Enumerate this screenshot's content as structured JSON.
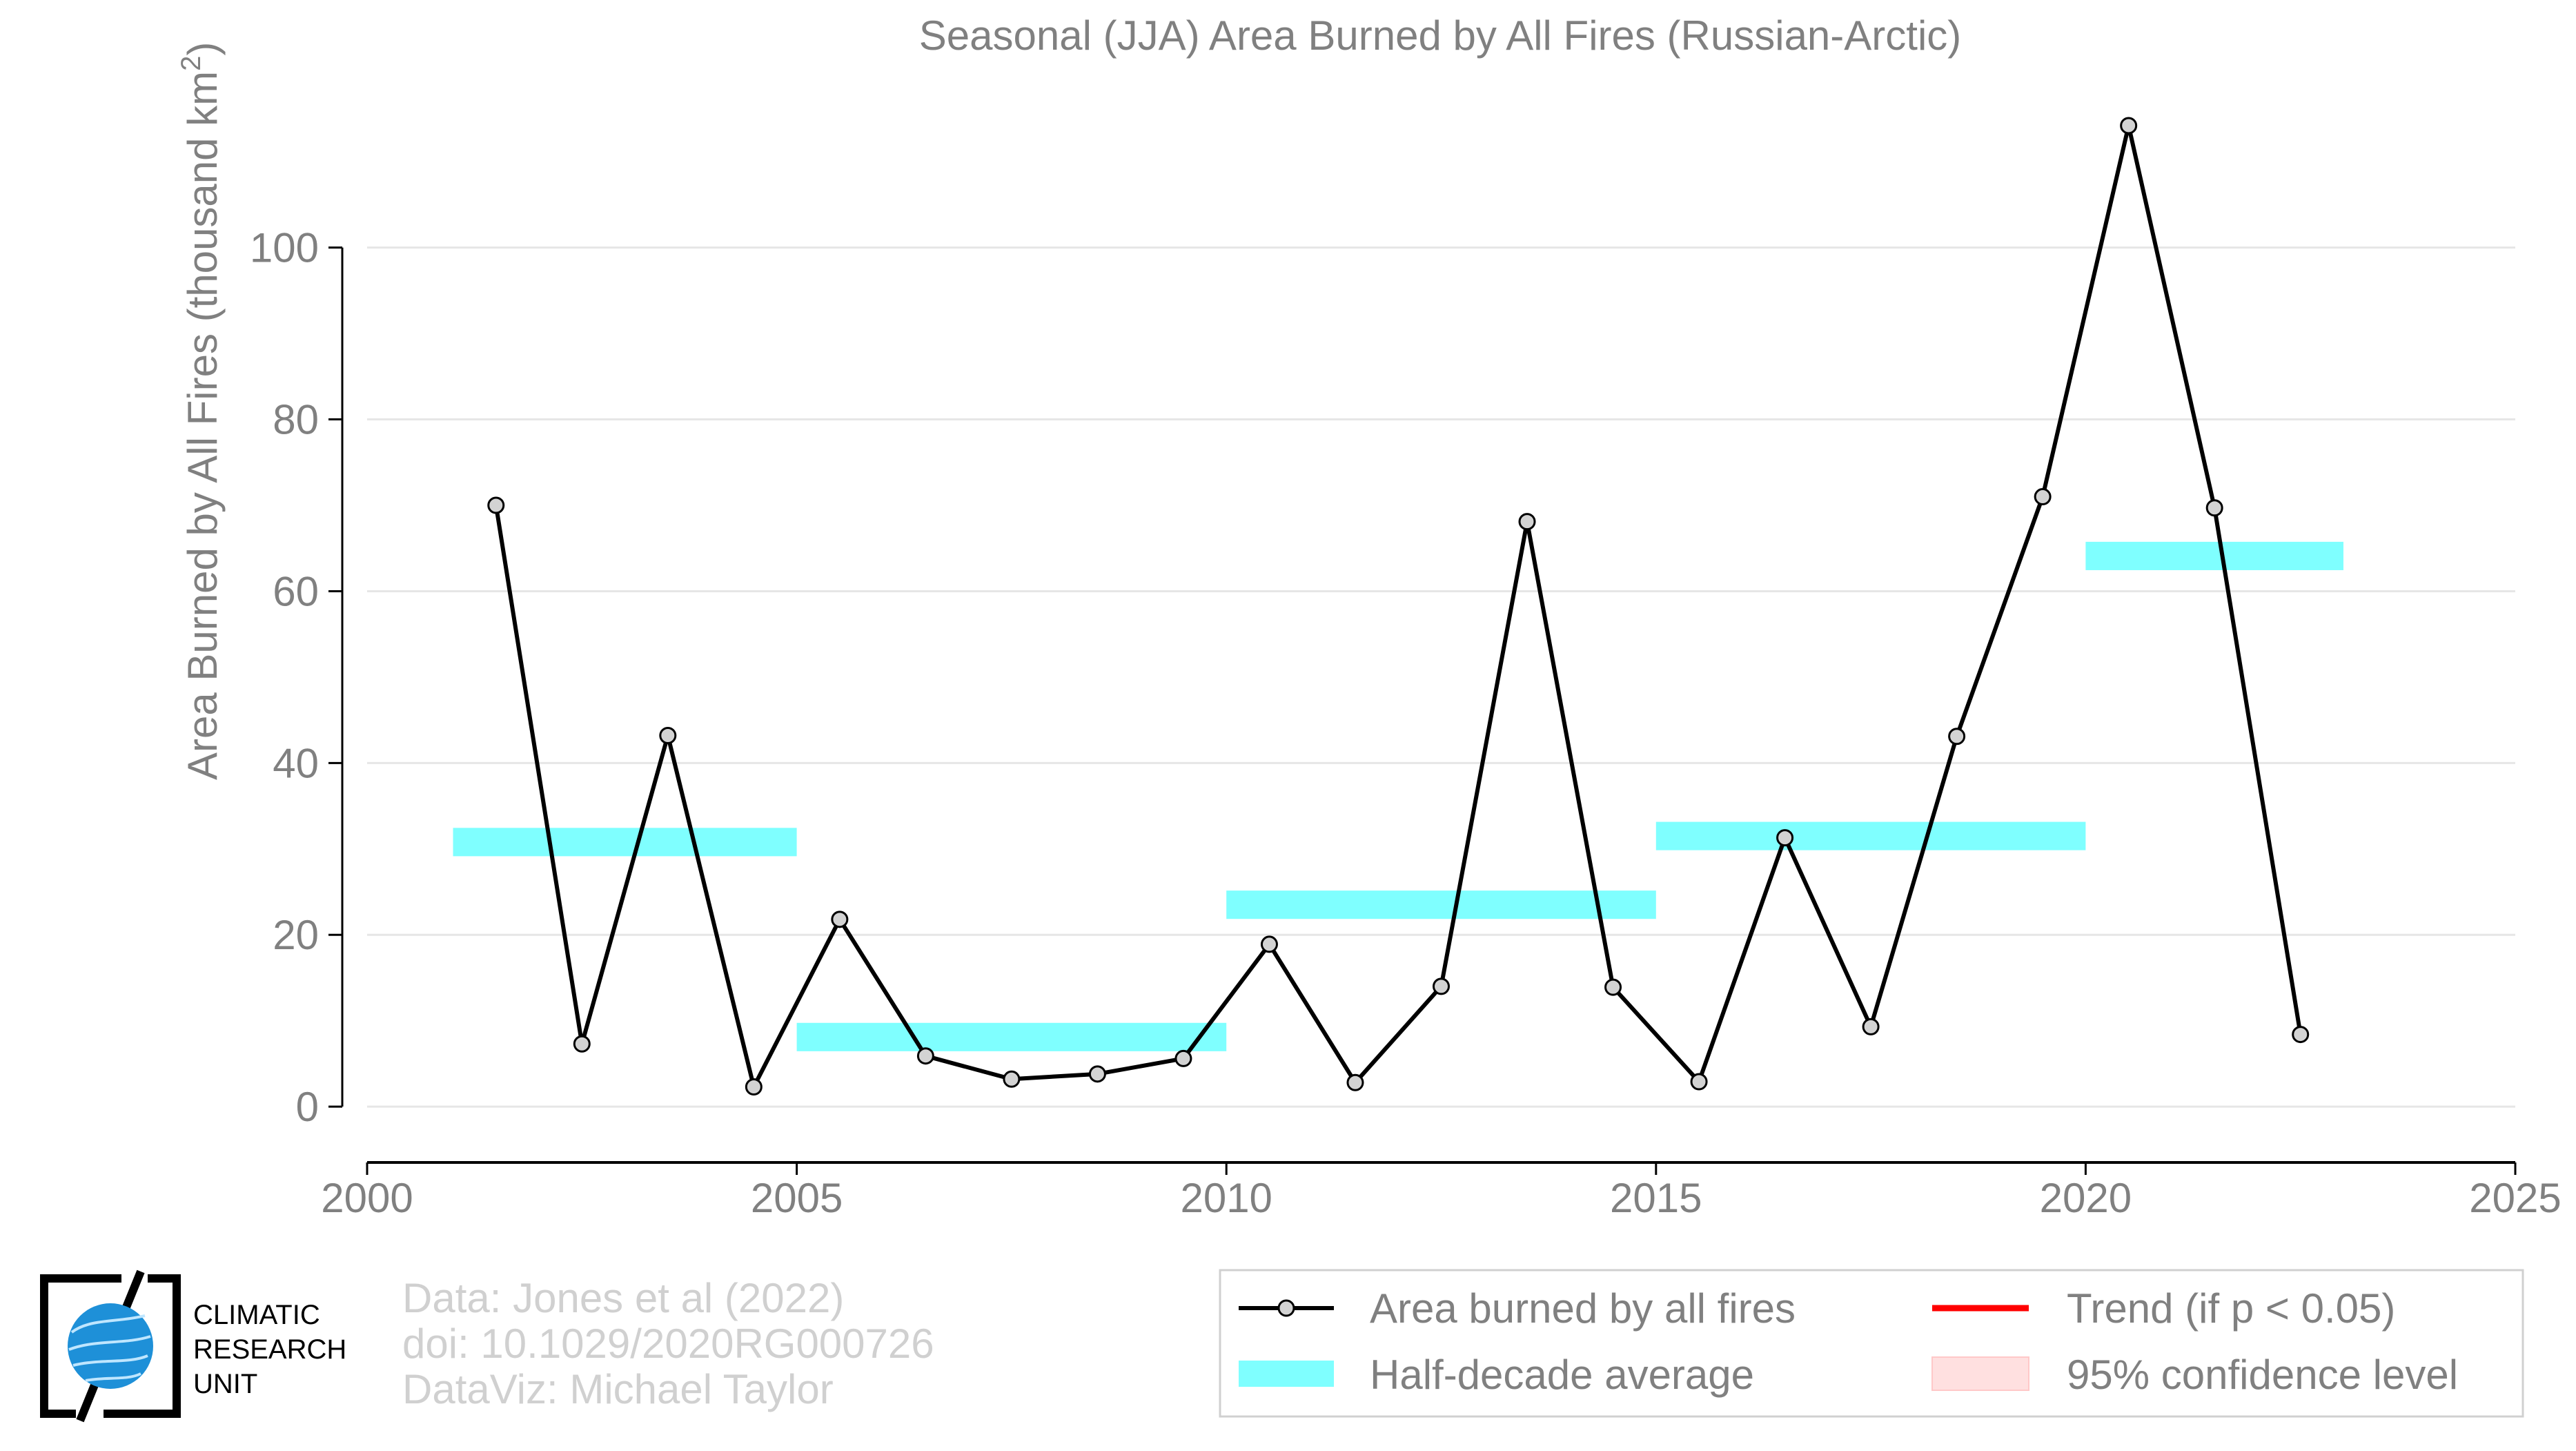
{
  "chart_data": {
    "type": "line",
    "title": "Seasonal (JJA) Area Burned by All Fires (Russian-Arctic)",
    "xlabel": "",
    "ylabel": "Area Burned by All Fires (thousand km",
    "ylabel_sup": "2",
    "ylabel_end": ")",
    "xlim": [
      2000,
      2025
    ],
    "ylim": [
      -6.5,
      115
    ],
    "x_ticks": [
      2000,
      2005,
      2010,
      2015,
      2020,
      2025
    ],
    "y_ticks": [
      0,
      20,
      40,
      60,
      80,
      100
    ],
    "grid": "horizontal",
    "series": [
      {
        "name": "Area burned by all fires",
        "color": "#000000",
        "marker_fill": "#d3d3d3",
        "x": [
          2001.5,
          2002.5,
          2003.5,
          2004.5,
          2005.5,
          2006.5,
          2007.5,
          2008.5,
          2009.5,
          2010.5,
          2011.5,
          2012.5,
          2013.5,
          2014.5,
          2015.5,
          2016.5,
          2017.5,
          2018.5,
          2019.5,
          2020.5,
          2021.5,
          2022.5
        ],
        "values": [
          70.0,
          7.3,
          43.2,
          2.3,
          21.8,
          5.9,
          3.2,
          3.8,
          5.6,
          18.9,
          2.8,
          14.0,
          68.1,
          13.9,
          2.9,
          31.3,
          9.3,
          43.1,
          71.0,
          114.2,
          69.7,
          8.4
        ]
      }
    ],
    "half_decade_average": {
      "name": "Half-decade average",
      "color": "#7fffff",
      "segments": [
        {
          "x_start": 2001,
          "x_end": 2005,
          "value": 30.8
        },
        {
          "x_start": 2005,
          "x_end": 2010,
          "value": 8.1
        },
        {
          "x_start": 2010,
          "x_end": 2015,
          "value": 23.5
        },
        {
          "x_start": 2015,
          "x_end": 2020,
          "value": 31.5
        },
        {
          "x_start": 2020,
          "x_end": 2023,
          "value": 64.1
        }
      ]
    },
    "legend": {
      "placement": "bottom-right",
      "entries": [
        {
          "label": "Area burned by all fires",
          "kind": "line-marker",
          "color": "#000000"
        },
        {
          "label": "Trend (if p < 0.05)",
          "kind": "line",
          "color": "#ff0000"
        },
        {
          "label": "Half-decade average",
          "kind": "band",
          "color": "#7fffff"
        },
        {
          "label": "95% confidence level",
          "kind": "band",
          "color": "#ffe0e0"
        }
      ]
    }
  },
  "logo": {
    "text_lines": [
      "CLIMATIC",
      "RESEARCH",
      "UNIT"
    ],
    "globe_color": "#1e90d8"
  },
  "credits": {
    "data_line": "Data: Jones et al (2022)",
    "doi_line": "doi: 10.1029/2020RG000726",
    "dataviz_line": "DataViz: Michael Taylor"
  },
  "colors": {
    "axis_text": "#808080",
    "grid": "#e6e6e6",
    "axis_line": "#000000",
    "credit_text": "#d0d0d0"
  }
}
